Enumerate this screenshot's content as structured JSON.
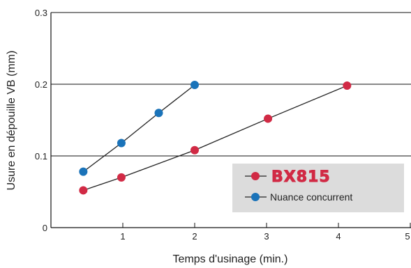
{
  "chart_data": {
    "type": "line",
    "title": "",
    "xlabel": "Temps d'usinage (min.)",
    "ylabel": "Usure en dépouille VB (mm)",
    "xlim": [
      0,
      5
    ],
    "ylim": [
      0,
      0.3
    ],
    "x_ticks": [
      "1",
      "2",
      "3",
      "4",
      "5"
    ],
    "y_ticks": [
      "0",
      "0.1",
      "0.2",
      "0.3"
    ],
    "grid": "horizontal",
    "legend_position": "bottom-right",
    "series": [
      {
        "name": "BX815",
        "color": "#d12a45",
        "points": [
          {
            "x": 0.45,
            "y": 0.052
          },
          {
            "x": 0.98,
            "y": 0.07
          },
          {
            "x": 2.0,
            "y": 0.108
          },
          {
            "x": 3.02,
            "y": 0.152
          },
          {
            "x": 4.12,
            "y": 0.198
          }
        ]
      },
      {
        "name": "Nuance concurrent",
        "color": "#1a73b9",
        "points": [
          {
            "x": 0.45,
            "y": 0.078
          },
          {
            "x": 0.98,
            "y": 0.118
          },
          {
            "x": 1.5,
            "y": 0.16
          },
          {
            "x": 2.0,
            "y": 0.199
          }
        ]
      }
    ]
  }
}
